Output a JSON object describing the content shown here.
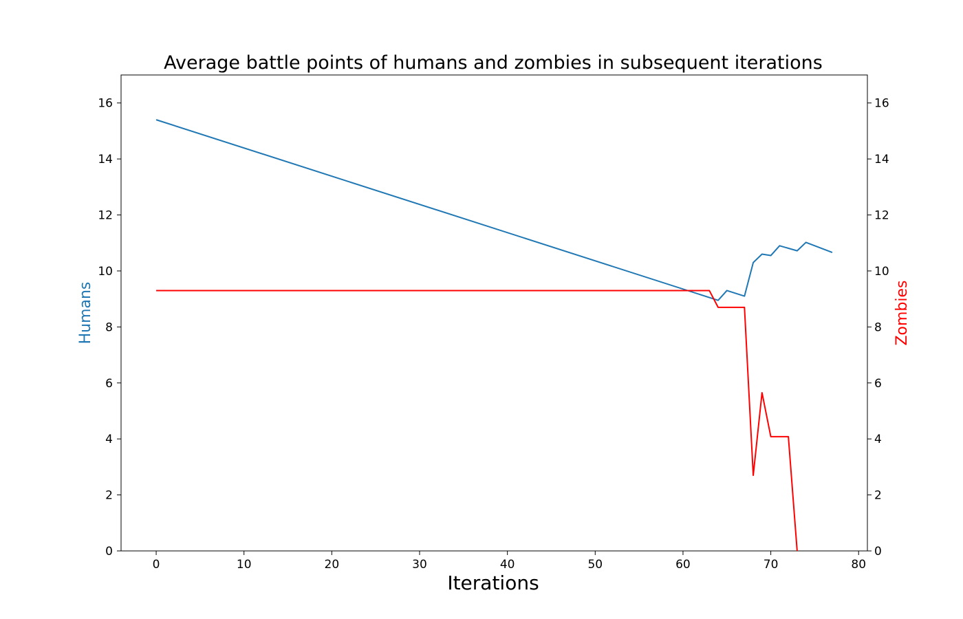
{
  "chart_data": {
    "type": "line",
    "title": "Average battle points of humans and zombies in subsequent iterations",
    "xlabel": "Iterations",
    "ylabel_left": "Humans",
    "ylabel_right": "Zombies",
    "xlim": [
      -4,
      81
    ],
    "ylim": [
      0,
      17
    ],
    "x_ticks": [
      "0",
      "10",
      "20",
      "30",
      "40",
      "50",
      "60",
      "70",
      "80"
    ],
    "y_ticks": [
      "0",
      "2",
      "4",
      "6",
      "8",
      "10",
      "12",
      "14",
      "16"
    ],
    "grid": false,
    "colors": {
      "humans": "#1f77b4",
      "zombies": "#ff0000"
    },
    "series": [
      {
        "name": "Humans",
        "axis": "left",
        "x": [
          0,
          64,
          65,
          67,
          68,
          69,
          70,
          71,
          73,
          74,
          77
        ],
        "y": [
          15.4,
          8.95,
          9.3,
          9.1,
          10.3,
          10.6,
          10.55,
          10.9,
          10.72,
          11.02,
          10.66
        ]
      },
      {
        "name": "Zombies",
        "axis": "right",
        "x": [
          0,
          63,
          64,
          67,
          68,
          69,
          70,
          72,
          73
        ],
        "y": [
          9.3,
          9.3,
          8.7,
          8.7,
          2.7,
          5.65,
          4.08,
          4.08,
          0.0
        ]
      }
    ]
  }
}
